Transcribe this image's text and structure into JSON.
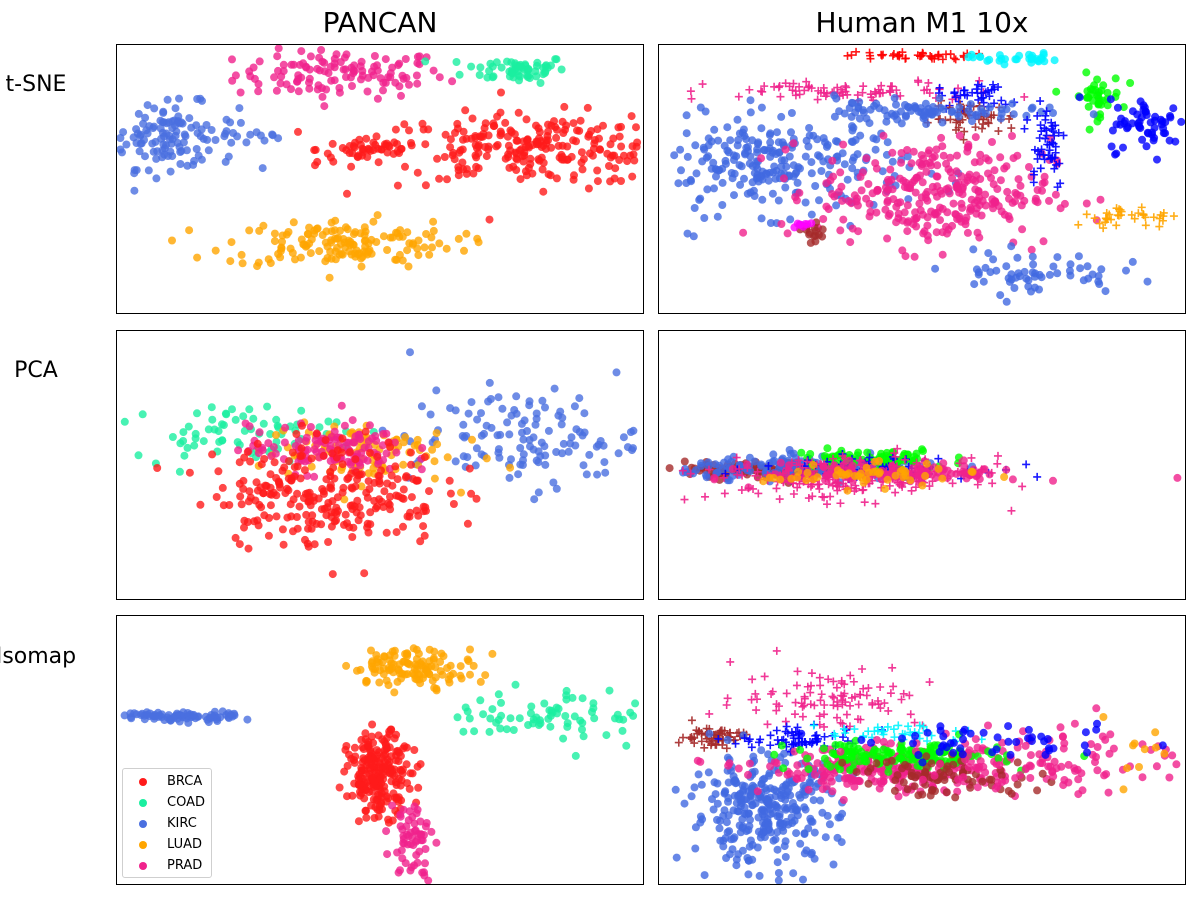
{
  "titles": {
    "left": "PANCAN",
    "right": "Human M1 10x"
  },
  "row_labels": [
    "t-SNE",
    "PCA",
    "Isomap"
  ],
  "legend": {
    "items": [
      {
        "label": "BRCA",
        "color": "#ff1a1a"
      },
      {
        "label": "COAD",
        "color": "#1aefa0"
      },
      {
        "label": "KIRC",
        "color": "#4a6fe0"
      },
      {
        "label": "LUAD",
        "color": "#ffa500"
      },
      {
        "label": "PRAD",
        "color": "#f0228c"
      }
    ]
  },
  "chart_data": [
    {
      "type": "scatter",
      "title": "PANCAN",
      "ylabel": "t-SNE",
      "axes_visible": false,
      "markers": "circle",
      "clusters": [
        {
          "label": "PRAD",
          "color": "#f0228c",
          "cx": -15,
          "cy": 78,
          "sx": 20,
          "sy": 9,
          "n": 120
        },
        {
          "label": "COAD",
          "color": "#1aefa0",
          "cx": 52,
          "cy": 82,
          "sx": 10,
          "sy": 5,
          "n": 60
        },
        {
          "label": "KIRC",
          "color": "#4a6fe0",
          "cx": -80,
          "cy": 32,
          "sx": 13,
          "sy": 12,
          "n": 130
        },
        {
          "label": "KIRC",
          "color": "#4a6fe0",
          "cx": -50,
          "cy": 33,
          "sx": 5,
          "sy": 1,
          "n": 8
        },
        {
          "label": "BRCA",
          "color": "#ff1a1a",
          "cx": -4,
          "cy": 22,
          "sx": 10,
          "sy": 5,
          "n": 45
        },
        {
          "label": "BRCA",
          "color": "#ff1a1a",
          "cx": 60,
          "cy": 22,
          "sx": 32,
          "sy": 13,
          "n": 260
        },
        {
          "label": "LUAD",
          "color": "#ffa500",
          "cx": -15,
          "cy": -48,
          "sx": 22,
          "sy": 9,
          "n": 150
        }
      ],
      "xlim": [
        -100,
        100
      ],
      "ylim": [
        -100,
        100
      ]
    },
    {
      "type": "scatter",
      "title": "Human M1 10x",
      "ylabel": "t-SNE",
      "axes_visible": false,
      "markers": "circle/plus",
      "clusters": [
        {
          "label": "",
          "color": "#ff0000",
          "cx": -5,
          "cy": 92,
          "sx": 12,
          "sy": 1.5,
          "n": 40,
          "marker": "plus"
        },
        {
          "label": "",
          "color": "#00f5ff",
          "cx": 35,
          "cy": 90,
          "sx": 8,
          "sy": 2,
          "n": 30
        },
        {
          "label": "",
          "color": "#f0228c",
          "cx": -25,
          "cy": 65,
          "sx": 28,
          "sy": 4,
          "n": 80,
          "marker": "plus"
        },
        {
          "label": "",
          "color": "#0000ff",
          "cx": 20,
          "cy": 62,
          "sx": 7,
          "sy": 5,
          "n": 40,
          "marker": "plus"
        },
        {
          "label": "",
          "color": "#00ff00",
          "cx": 66,
          "cy": 62,
          "sx": 5,
          "sy": 8,
          "n": 40
        },
        {
          "label": "",
          "color": "#a52a2a",
          "cx": 20,
          "cy": 45,
          "sx": 8,
          "sy": 6,
          "n": 50,
          "marker": "plus"
        },
        {
          "label": "",
          "color": "#4169e1",
          "cx": -55,
          "cy": 10,
          "sx": 25,
          "sy": 18,
          "n": 260
        },
        {
          "label": "",
          "color": "#4169e1",
          "cx": 0,
          "cy": 50,
          "sx": 22,
          "sy": 4,
          "n": 90
        },
        {
          "label": "",
          "color": "#f0228c",
          "cx": 5,
          "cy": -10,
          "sx": 22,
          "sy": 20,
          "n": 300
        },
        {
          "label": "",
          "color": "#0000ff",
          "cx": 47,
          "cy": 28,
          "sx": 4,
          "sy": 18,
          "n": 50,
          "marker": "plus"
        },
        {
          "label": "",
          "color": "#0000ff",
          "cx": 87,
          "cy": 40,
          "sx": 8,
          "sy": 10,
          "n": 60
        },
        {
          "label": "",
          "color": "#ffa500",
          "cx": 82,
          "cy": -28,
          "sx": 13,
          "sy": 4,
          "n": 40,
          "marker": "plus"
        },
        {
          "label": "",
          "color": "#4169e1",
          "cx": 42,
          "cy": -70,
          "sx": 16,
          "sy": 8,
          "n": 60
        },
        {
          "label": "",
          "color": "#a52a2a",
          "cx": -42,
          "cy": -40,
          "sx": 3,
          "sy": 5,
          "n": 15
        },
        {
          "label": "",
          "color": "#ff00ff",
          "cx": -46,
          "cy": -34,
          "sx": 3,
          "sy": 2,
          "n": 8
        }
      ],
      "xlim": [
        -100,
        100
      ],
      "ylim": [
        -100,
        100
      ]
    },
    {
      "type": "scatter",
      "title": "PANCAN",
      "ylabel": "PCA",
      "axes_visible": false,
      "markers": "circle",
      "clusters": [
        {
          "label": "COAD",
          "color": "#1aefa0",
          "cx": -55,
          "cy": 25,
          "sx": 20,
          "sy": 10,
          "n": 70
        },
        {
          "label": "KIRC",
          "color": "#4a6fe0",
          "cx": 55,
          "cy": 20,
          "sx": 22,
          "sy": 18,
          "n": 130
        },
        {
          "label": "LUAD",
          "color": "#ffa500",
          "cx": -10,
          "cy": 10,
          "sx": 18,
          "sy": 12,
          "n": 100
        },
        {
          "label": "PRAD",
          "color": "#f0228c",
          "cx": -20,
          "cy": 12,
          "sx": 15,
          "sy": 9,
          "n": 120
        },
        {
          "label": "BRCA",
          "color": "#ff1a1a",
          "cx": -20,
          "cy": -20,
          "sx": 22,
          "sy": 20,
          "n": 260
        }
      ],
      "xlim": [
        -100,
        100
      ],
      "ylim": [
        -100,
        100
      ]
    },
    {
      "type": "scatter",
      "title": "Human M1 10x",
      "ylabel": "PCA",
      "axes_visible": false,
      "markers": "circle/plus",
      "clusters": [
        {
          "label": "",
          "color": "#a52a2a",
          "cx": -60,
          "cy": -4,
          "sx": 15,
          "sy": 3,
          "n": 120
        },
        {
          "label": "",
          "color": "#4169e1",
          "cx": -40,
          "cy": -2,
          "sx": 25,
          "sy": 4,
          "n": 160
        },
        {
          "label": "",
          "color": "#00ff00",
          "cx": -20,
          "cy": 4,
          "sx": 15,
          "sy": 4,
          "n": 80
        },
        {
          "label": "",
          "color": "#0000ff",
          "cx": -20,
          "cy": -2,
          "sx": 20,
          "sy": 4,
          "n": 80,
          "marker": "plus"
        },
        {
          "label": "",
          "color": "#f0228c",
          "cx": -30,
          "cy": -10,
          "sx": 25,
          "sy": 8,
          "n": 200,
          "marker": "plus"
        },
        {
          "label": "",
          "color": "#f0228c",
          "cx": -10,
          "cy": -6,
          "sx": 25,
          "sy": 4,
          "n": 120
        },
        {
          "label": "",
          "color": "#ffa500",
          "cx": -20,
          "cy": -8,
          "sx": 20,
          "sy": 4,
          "n": 50
        }
      ],
      "xlim": [
        -100,
        100
      ],
      "ylim": [
        -100,
        100
      ]
    },
    {
      "type": "scatter",
      "title": "PANCAN",
      "ylabel": "Isomap",
      "axes_visible": false,
      "markers": "circle",
      "clusters": [
        {
          "label": "KIRC",
          "color": "#4a6fe0",
          "cx": -78,
          "cy": 25,
          "sx": 12,
          "sy": 2,
          "n": 80
        },
        {
          "label": "BRCA",
          "color": "#ff1a1a",
          "cx": 0,
          "cy": -18,
          "sx": 6,
          "sy": 15,
          "n": 220
        },
        {
          "label": "LUAD",
          "color": "#ffa500",
          "cx": 13,
          "cy": 62,
          "sx": 12,
          "sy": 7,
          "n": 120
        },
        {
          "label": "COAD",
          "color": "#1aefa0",
          "cx": 70,
          "cy": 25,
          "sx": 22,
          "sy": 10,
          "n": 80
        },
        {
          "label": "PRAD",
          "color": "#f0228c",
          "cx": 12,
          "cy": -65,
          "sx": 4,
          "sy": 15,
          "n": 60
        }
      ],
      "xlim": [
        -100,
        100
      ],
      "ylim": [
        -100,
        100
      ]
    },
    {
      "type": "scatter",
      "title": "Human M1 10x",
      "ylabel": "Isomap",
      "axes_visible": false,
      "markers": "circle/plus",
      "clusters": [
        {
          "label": "",
          "color": "#a52a2a",
          "cx": -80,
          "cy": 10,
          "sx": 6,
          "sy": 4,
          "n": 60,
          "marker": "plus"
        },
        {
          "label": "",
          "color": "#4169e1",
          "cx": -60,
          "cy": -45,
          "sx": 14,
          "sy": 20,
          "n": 300
        },
        {
          "label": "",
          "color": "#f0228c",
          "cx": -35,
          "cy": 40,
          "sx": 18,
          "sy": 12,
          "n": 100,
          "marker": "plus"
        },
        {
          "label": "",
          "color": "#0000ff",
          "cx": -45,
          "cy": 8,
          "sx": 12,
          "sy": 4,
          "n": 60,
          "marker": "plus"
        },
        {
          "label": "",
          "color": "#00f5ff",
          "cx": -10,
          "cy": 12,
          "sx": 15,
          "sy": 4,
          "n": 40,
          "marker": "plus"
        },
        {
          "label": "",
          "color": "#f0228c",
          "cx": -10,
          "cy": -15,
          "sx": 25,
          "sy": 8,
          "n": 260
        },
        {
          "label": "",
          "color": "#00ff00",
          "cx": -10,
          "cy": -5,
          "sx": 20,
          "sy": 5,
          "n": 150
        },
        {
          "label": "",
          "color": "#a52a2a",
          "cx": 10,
          "cy": -20,
          "sx": 18,
          "sy": 7,
          "n": 80
        },
        {
          "label": "",
          "color": "#f0228c",
          "cx": 55,
          "cy": -5,
          "sx": 28,
          "sy": 14,
          "n": 100
        },
        {
          "label": "",
          "color": "#0000ff",
          "cx": 30,
          "cy": 5,
          "sx": 25,
          "sy": 6,
          "n": 50
        },
        {
          "label": "",
          "color": "#ffa500",
          "cx": 80,
          "cy": 0,
          "sx": 10,
          "sy": 10,
          "n": 10
        }
      ],
      "xlim": [
        -100,
        100
      ],
      "ylim": [
        -100,
        100
      ]
    }
  ]
}
